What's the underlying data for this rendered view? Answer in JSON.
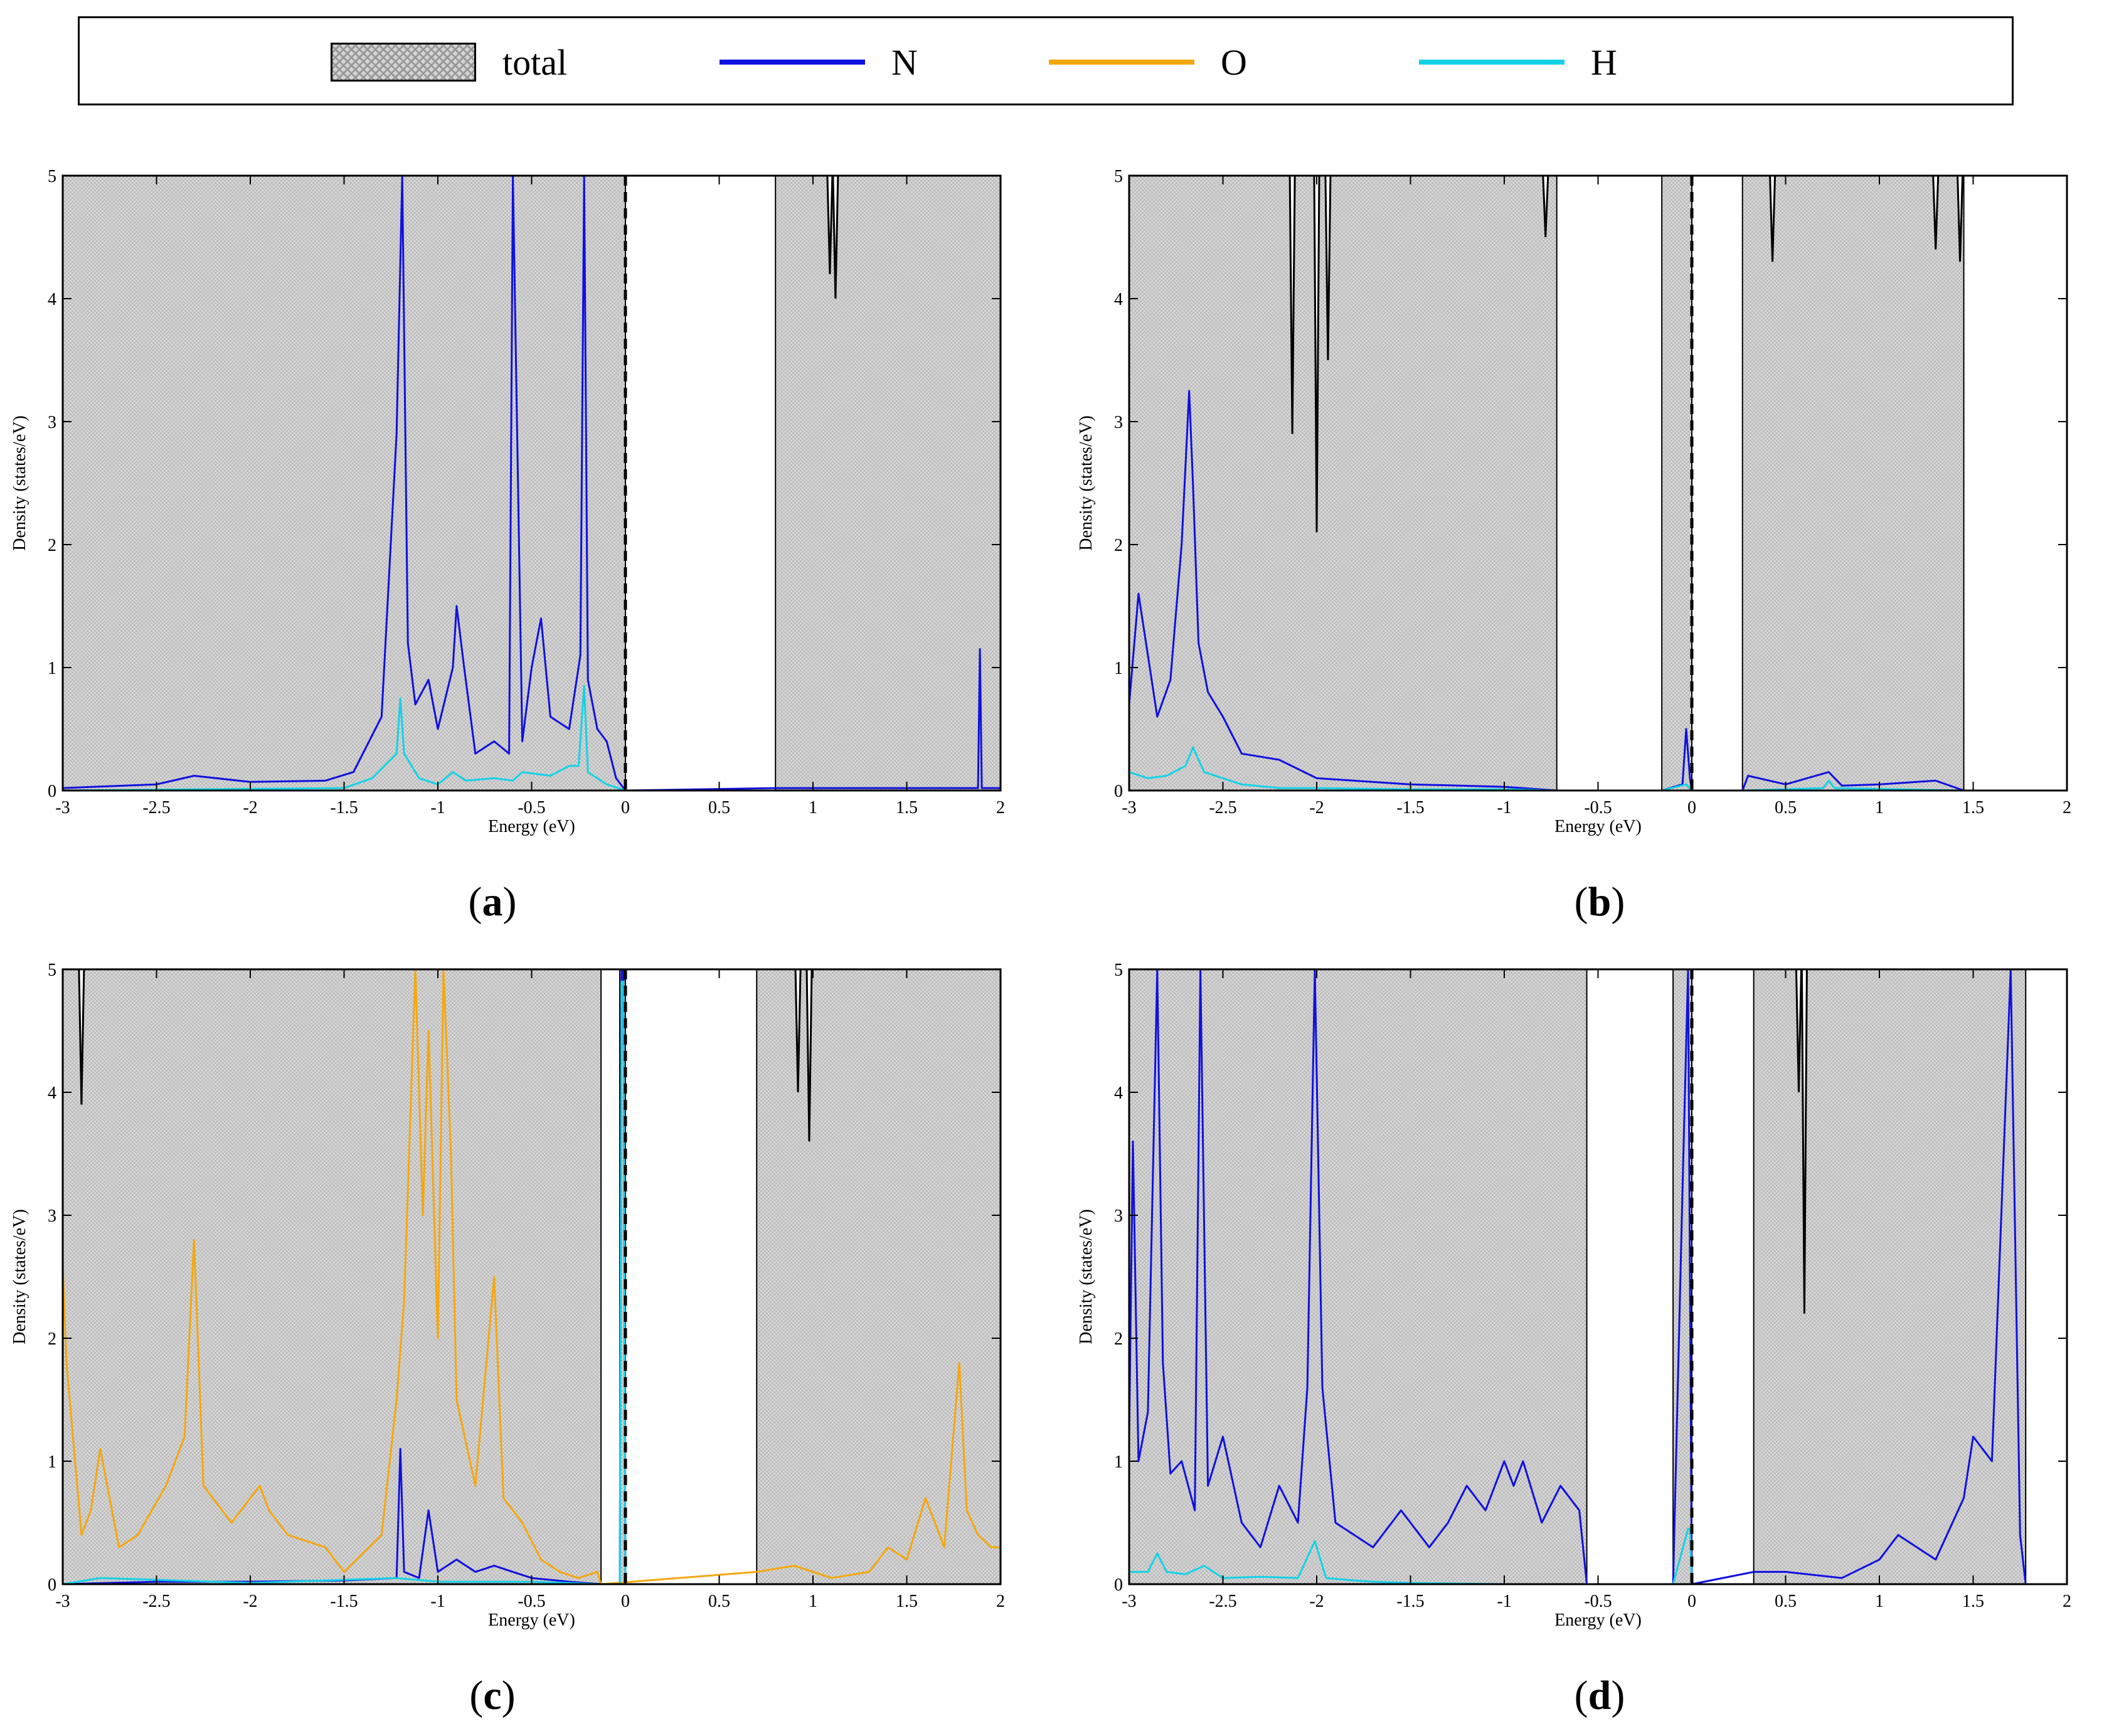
{
  "legend": {
    "items": [
      {
        "label": "total",
        "kind": "swatch",
        "color": "#bdbdbd"
      },
      {
        "label": "N",
        "kind": "line",
        "color": "#1010e0"
      },
      {
        "label": "O",
        "kind": "line",
        "color": "#f5a70f"
      },
      {
        "label": "H",
        "kind": "line",
        "color": "#14d2e6"
      }
    ]
  },
  "captions": [
    {
      "open": "(",
      "letter": "a",
      "close": ")"
    },
    {
      "open": "(",
      "letter": "b",
      "close": ")"
    },
    {
      "open": "(",
      "letter": "c",
      "close": ")"
    },
    {
      "open": "(",
      "letter": "d",
      "close": ")"
    }
  ],
  "chart_data": [
    {
      "panel": "a",
      "type": "area",
      "xlabel": "Energy (eV)",
      "ylabel": "Density (states/eV)",
      "xlim": [
        -3,
        2
      ],
      "ylim": [
        0,
        5
      ],
      "xticks": [
        -3,
        -2.5,
        -2,
        -1.5,
        -1,
        -0.5,
        0,
        0.5,
        1,
        1.5,
        2
      ],
      "xtick_labels": [
        "-3",
        "-2.5",
        "-2",
        "-1.5",
        "-1",
        "-0.5",
        "0",
        "0.5",
        "1",
        "1.5",
        "2"
      ],
      "yticks": [
        0,
        1,
        2,
        3,
        4,
        5
      ],
      "ytick_labels": [
        "0",
        "1",
        "2",
        "3",
        "4",
        "5"
      ],
      "fermi_level": 0,
      "total_bands": [
        [
          -3,
          0
        ],
        [
          0.8,
          2
        ]
      ],
      "total_dips": [
        [
          1.09,
          4.2
        ],
        [
          1.12,
          4.0
        ]
      ],
      "series": [
        {
          "name": "N",
          "color": "#1010e0",
          "x": [
            -3,
            -2.5,
            -2.3,
            -2,
            -1.6,
            -1.45,
            -1.3,
            -1.22,
            -1.19,
            -1.16,
            -1.12,
            -1.05,
            -1.0,
            -0.92,
            -0.9,
            -0.86,
            -0.8,
            -0.7,
            -0.62,
            -0.6,
            -0.55,
            -0.5,
            -0.45,
            -0.4,
            -0.3,
            -0.24,
            -0.22,
            -0.2,
            -0.15,
            -0.1,
            -0.05,
            0.0,
            0.8,
            1.5,
            1.88,
            1.89,
            1.9,
            2.0
          ],
          "values": [
            0.02,
            0.05,
            0.12,
            0.07,
            0.08,
            0.15,
            0.6,
            2.9,
            5.0,
            1.2,
            0.7,
            0.9,
            0.5,
            1.0,
            1.5,
            1.0,
            0.3,
            0.4,
            0.3,
            5.0,
            0.4,
            1.0,
            1.4,
            0.6,
            0.5,
            1.1,
            5.0,
            0.9,
            0.5,
            0.4,
            0.1,
            0.0,
            0.02,
            0.02,
            0.02,
            1.15,
            0.02,
            0.02
          ]
        },
        {
          "name": "H",
          "color": "#14d2e6",
          "x": [
            -3,
            -1.5,
            -1.35,
            -1.22,
            -1.2,
            -1.18,
            -1.1,
            -1.0,
            -0.92,
            -0.85,
            -0.7,
            -0.6,
            -0.55,
            -0.4,
            -0.3,
            -0.25,
            -0.22,
            -0.2,
            -0.15,
            -0.1,
            0.0
          ],
          "values": [
            0.0,
            0.02,
            0.1,
            0.3,
            0.75,
            0.3,
            0.1,
            0.05,
            0.15,
            0.08,
            0.1,
            0.08,
            0.15,
            0.12,
            0.2,
            0.2,
            0.85,
            0.15,
            0.1,
            0.05,
            0.0
          ]
        }
      ]
    },
    {
      "panel": "b",
      "type": "area",
      "xlabel": "Energy (eV)",
      "ylabel": "Density (states/eV)",
      "xlim": [
        -3,
        2
      ],
      "ylim": [
        0,
        5
      ],
      "xticks": [
        -3,
        -2.5,
        -2,
        -1.5,
        -1,
        -0.5,
        0,
        0.5,
        1,
        1.5,
        2
      ],
      "xtick_labels": [
        "-3",
        "-2.5",
        "-2",
        "-1.5",
        "-1",
        "-0.5",
        "0",
        "0.5",
        "1",
        "1.5",
        "2"
      ],
      "yticks": [
        0,
        1,
        2,
        3,
        4,
        5
      ],
      "ytick_labels": [
        "0",
        "1",
        "2",
        "3",
        "4",
        "5"
      ],
      "fermi_level": 0,
      "total_bands": [
        [
          -3,
          -0.72
        ],
        [
          -0.16,
          0.0
        ],
        [
          0.27,
          1.45
        ]
      ],
      "total_dips": [
        [
          -2.13,
          2.9
        ],
        [
          -2.0,
          2.1
        ],
        [
          -1.94,
          3.5
        ],
        [
          -0.78,
          4.5
        ],
        [
          0.43,
          4.3
        ],
        [
          1.3,
          4.4
        ],
        [
          1.43,
          4.3
        ]
      ],
      "series": [
        {
          "name": "N",
          "color": "#1010e0",
          "x": [
            -3,
            -2.95,
            -2.9,
            -2.85,
            -2.78,
            -2.72,
            -2.68,
            -2.66,
            -2.63,
            -2.58,
            -2.5,
            -2.4,
            -2.2,
            -2.0,
            -1.5,
            -1.0,
            -0.72,
            -0.16,
            -0.05,
            -0.03,
            -0.01,
            0.0,
            0.27,
            0.3,
            0.5,
            0.73,
            0.8,
            1.0,
            1.3,
            1.45
          ],
          "values": [
            0.7,
            1.6,
            1.1,
            0.6,
            0.9,
            2.0,
            3.25,
            2.5,
            1.2,
            0.8,
            0.6,
            0.3,
            0.25,
            0.1,
            0.05,
            0.03,
            0.0,
            0.0,
            0.05,
            0.5,
            0.1,
            0.0,
            0.0,
            0.12,
            0.05,
            0.15,
            0.04,
            0.05,
            0.08,
            0.0
          ]
        },
        {
          "name": "H",
          "color": "#14d2e6",
          "x": [
            -3,
            -2.9,
            -2.8,
            -2.7,
            -2.66,
            -2.6,
            -2.5,
            -2.4,
            -2.2,
            -2.0,
            -1.5,
            -1.0,
            -0.72,
            -0.16,
            -0.03,
            0.0,
            0.27,
            0.7,
            0.73,
            0.76,
            1.45
          ],
          "values": [
            0.15,
            0.1,
            0.12,
            0.2,
            0.35,
            0.15,
            0.1,
            0.05,
            0.02,
            0.02,
            0.01,
            0.01,
            0.0,
            0.0,
            0.05,
            0.0,
            0.0,
            0.02,
            0.08,
            0.02,
            0.0
          ]
        }
      ]
    },
    {
      "panel": "c",
      "type": "area",
      "xlabel": "Energy (eV)",
      "ylabel": "Density (states/eV)",
      "xlim": [
        -3,
        2
      ],
      "ylim": [
        0,
        5
      ],
      "xticks": [
        -3,
        -2.5,
        -2,
        -1.5,
        -1,
        -0.5,
        0,
        0.5,
        1,
        1.5,
        2
      ],
      "xtick_labels": [
        "-3",
        "-2.5",
        "-2",
        "-1.5",
        "-1",
        "-0.5",
        "0",
        "0.5",
        "1",
        "1.5",
        "2"
      ],
      "yticks": [
        0,
        1,
        2,
        3,
        4,
        5
      ],
      "ytick_labels": [
        "0",
        "1",
        "2",
        "3",
        "4",
        "5"
      ],
      "fermi_level": 0,
      "total_bands": [
        [
          -3,
          -0.13
        ],
        [
          -0.03,
          0.0
        ],
        [
          0.7,
          2
        ]
      ],
      "total_dips": [
        [
          -2.9,
          3.9
        ],
        [
          0.92,
          4.0
        ],
        [
          0.98,
          3.6
        ]
      ],
      "series": [
        {
          "name": "O",
          "color": "#f5a70f",
          "x": [
            -3,
            -2.98,
            -2.9,
            -2.85,
            -2.8,
            -2.7,
            -2.6,
            -2.45,
            -2.35,
            -2.3,
            -2.25,
            -2.1,
            -1.95,
            -1.9,
            -1.8,
            -1.6,
            -1.5,
            -1.3,
            -1.22,
            -1.18,
            -1.12,
            -1.08,
            -1.05,
            -1.0,
            -0.97,
            -0.93,
            -0.9,
            -0.8,
            -0.7,
            -0.65,
            -0.55,
            -0.45,
            -0.35,
            -0.25,
            -0.15,
            -0.13,
            0.7,
            0.9,
            1.1,
            1.3,
            1.4,
            1.5,
            1.6,
            1.7,
            1.78,
            1.82,
            1.88,
            1.95,
            2.0
          ],
          "values": [
            2.6,
            1.8,
            0.4,
            0.6,
            1.1,
            0.3,
            0.4,
            0.8,
            1.2,
            2.8,
            0.8,
            0.5,
            0.8,
            0.6,
            0.4,
            0.3,
            0.1,
            0.4,
            1.5,
            2.3,
            5.0,
            3.0,
            4.5,
            2.0,
            5.0,
            3.5,
            1.5,
            0.8,
            2.5,
            0.7,
            0.5,
            0.2,
            0.1,
            0.05,
            0.1,
            0.0,
            0.1,
            0.15,
            0.05,
            0.1,
            0.3,
            0.2,
            0.7,
            0.3,
            1.8,
            0.6,
            0.4,
            0.3,
            0.3
          ]
        },
        {
          "name": "N",
          "color": "#1010e0",
          "x": [
            -3,
            -2.5,
            -2.0,
            -1.5,
            -1.22,
            -1.2,
            -1.18,
            -1.1,
            -1.05,
            -1.0,
            -0.9,
            -0.8,
            -0.7,
            -0.6,
            -0.5,
            -0.3,
            -0.13,
            -0.03,
            -0.02,
            -0.01,
            0.0,
            0.7,
            2.0
          ],
          "values": [
            0.0,
            0.02,
            0.02,
            0.03,
            0.05,
            1.1,
            0.1,
            0.05,
            0.6,
            0.1,
            0.2,
            0.1,
            0.15,
            0.1,
            0.05,
            0.02,
            0.0,
            0.0,
            5.0,
            5.0,
            0.0,
            0.0,
            0.0
          ]
        },
        {
          "name": "H",
          "color": "#14d2e6",
          "x": [
            -3,
            -2.8,
            -2.0,
            -1.22,
            -1.0,
            -0.5,
            -0.13,
            -0.03,
            -0.02,
            -0.01,
            0.0,
            0.7,
            2.0
          ],
          "values": [
            0.0,
            0.05,
            0.01,
            0.05,
            0.02,
            0.02,
            0.0,
            0.0,
            4.9,
            4.9,
            0.0,
            0.0,
            0.0
          ]
        }
      ]
    },
    {
      "panel": "d",
      "type": "area",
      "xlabel": "Energy (eV)",
      "ylabel": "Density (states/eV)",
      "xlim": [
        -3,
        2
      ],
      "ylim": [
        0,
        5
      ],
      "xticks": [
        -3,
        -2.5,
        -2,
        -1.5,
        -1,
        -0.5,
        0,
        0.5,
        1,
        1.5,
        2
      ],
      "xtick_labels": [
        "-3",
        "-2.5",
        "-2",
        "-1.5",
        "-1",
        "-0.5",
        "0",
        "0.5",
        "1",
        "1.5",
        "2"
      ],
      "yticks": [
        0,
        1,
        2,
        3,
        4,
        5
      ],
      "ytick_labels": [
        "0",
        "1",
        "2",
        "3",
        "4",
        "5"
      ],
      "fermi_level": 0,
      "total_bands": [
        [
          -3,
          -0.56
        ],
        [
          -0.1,
          0.0
        ],
        [
          0.33,
          1.78
        ]
      ],
      "total_dips": [
        [
          0.57,
          4.0
        ],
        [
          0.6,
          2.2
        ]
      ],
      "series": [
        {
          "name": "N",
          "color": "#1010e0",
          "x": [
            -3,
            -2.98,
            -2.95,
            -2.9,
            -2.85,
            -2.82,
            -2.78,
            -2.72,
            -2.65,
            -2.62,
            -2.58,
            -2.5,
            -2.4,
            -2.3,
            -2.2,
            -2.1,
            -2.05,
            -2.01,
            -1.97,
            -1.9,
            -1.8,
            -1.7,
            -1.55,
            -1.4,
            -1.3,
            -1.2,
            -1.1,
            -1.0,
            -0.95,
            -0.9,
            -0.8,
            -0.7,
            -0.6,
            -0.56,
            -0.1,
            -0.05,
            -0.02,
            0.0,
            0.33,
            0.5,
            0.8,
            1.0,
            1.1,
            1.2,
            1.3,
            1.45,
            1.5,
            1.6,
            1.7,
            1.75,
            1.78
          ],
          "values": [
            1.2,
            3.6,
            1.0,
            1.4,
            5.0,
            1.8,
            0.9,
            1.0,
            0.6,
            5.0,
            0.8,
            1.2,
            0.5,
            0.3,
            0.8,
            0.5,
            1.6,
            5.0,
            1.6,
            0.5,
            0.4,
            0.3,
            0.6,
            0.3,
            0.5,
            0.8,
            0.6,
            1.0,
            0.8,
            1.0,
            0.5,
            0.8,
            0.6,
            0.0,
            0.0,
            3.2,
            5.0,
            0.0,
            0.1,
            0.1,
            0.05,
            0.2,
            0.4,
            0.3,
            0.2,
            0.7,
            1.2,
            1.0,
            5.0,
            0.4,
            0.0
          ]
        },
        {
          "name": "H",
          "color": "#14d2e6",
          "x": [
            -3,
            -2.9,
            -2.85,
            -2.8,
            -2.7,
            -2.6,
            -2.5,
            -2.3,
            -2.1,
            -2.01,
            -1.95,
            -1.8,
            -1.7,
            -1.5,
            -1.0,
            -0.56,
            -0.1,
            -0.02,
            -0.01,
            0.0,
            0.33,
            1.78
          ],
          "values": [
            0.1,
            0.1,
            0.25,
            0.1,
            0.08,
            0.15,
            0.05,
            0.06,
            0.05,
            0.35,
            0.05,
            0.03,
            0.02,
            0.01,
            0.0,
            0.0,
            0.0,
            0.45,
            0.45,
            0.0,
            0.0,
            0.0
          ]
        }
      ]
    }
  ]
}
